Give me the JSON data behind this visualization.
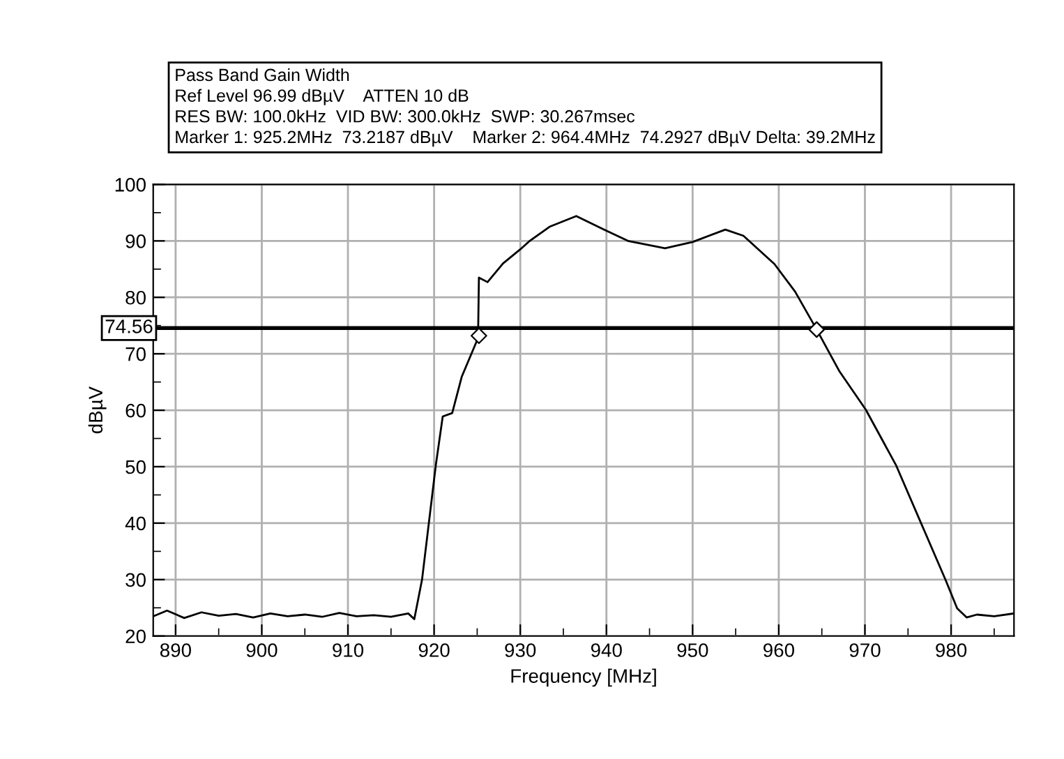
{
  "chart_data": {
    "type": "line",
    "title": "Pass Band Gain Width",
    "annotations": [
      "Ref Level 96.99 dBµV    ATTEN 10 dB",
      "RES BW: 100.0kHz  VID BW: 300.0kHz  SWP: 30.267msec",
      "Marker 1: 925.2MHz  73.2187 dBµV    Marker 2: 964.4MHz  74.2927 dBµV Delta: 39.2MHz"
    ],
    "xlabel": "Frequency [MHz]",
    "ylabel": "dBµV",
    "xlim": [
      887.4,
      987.3
    ],
    "ylim": [
      20,
      100
    ],
    "xticks": [
      890,
      {
        "value": 895,
        "label": null
      },
      900,
      {
        "value": 905,
        "label": null
      },
      910,
      {
        "value": 915,
        "label": null
      },
      920,
      {
        "value": 925,
        "label": null
      },
      930,
      {
        "value": 935,
        "label": null
      },
      940,
      {
        "value": 945,
        "label": null
      },
      950,
      {
        "value": 955,
        "label": null
      },
      960,
      {
        "value": 965,
        "label": null
      },
      970,
      {
        "value": 975,
        "label": null
      },
      980,
      {
        "value": 985,
        "label": null
      }
    ],
    "yticks": [
      20,
      {
        "value": 25,
        "label": null
      },
      30,
      {
        "value": 35,
        "label": null
      },
      40,
      {
        "value": 45,
        "label": null
      },
      50,
      {
        "value": 55,
        "label": null
      },
      60,
      {
        "value": 65,
        "label": null
      },
      70,
      {
        "value": 75,
        "label": null
      },
      80,
      {
        "value": 85,
        "label": null
      },
      90,
      {
        "value": 95,
        "label": null
      },
      100
    ],
    "grid": true,
    "legend": false,
    "ref_lines": [
      {
        "axis": "y",
        "value": 74.56,
        "label": "74.56",
        "color": "#000000"
      }
    ],
    "series": [
      {
        "color": "#000000",
        "marker": "none",
        "line_style": "solid",
        "x": [
          887.4,
          889,
          891,
          893,
          895,
          897,
          899,
          901,
          903,
          905,
          907,
          909,
          911,
          913,
          915,
          917,
          917.7,
          918.6,
          920.2,
          921.0,
          922.1,
          923.2,
          925.1,
          925.2,
          926.2,
          928,
          930,
          931.1,
          933.4,
          936.5,
          939.7,
          942.5,
          946.8,
          950,
          953.8,
          955.9,
          959.5,
          961.9,
          964.4,
          967,
          970.1,
          973.6,
          976.6,
          979.4,
          980.7,
          981.8,
          983,
          985,
          987.3
        ],
        "values": [
          23.5,
          24.5,
          23.2,
          24.2,
          23.6,
          23.9,
          23.3,
          24.0,
          23.5,
          23.8,
          23.4,
          24.1,
          23.5,
          23.7,
          23.4,
          24.0,
          23,
          30,
          50.3,
          58.9,
          59.5,
          65.9,
          72.8,
          83.5,
          82.7,
          86,
          88.5,
          90,
          92.5,
          94.4,
          92,
          90,
          88.7,
          89.8,
          92,
          90.9,
          85.9,
          81,
          74.3,
          67,
          60.1,
          50.3,
          39.7,
          29.8,
          24.9,
          23.3,
          23.8,
          23.5,
          24
        ]
      },
      {
        "type": "scatter",
        "color": "#000000",
        "marker": "diamond",
        "x": [
          925.2,
          964.4
        ],
        "values": [
          73.2,
          74.3
        ]
      }
    ]
  }
}
